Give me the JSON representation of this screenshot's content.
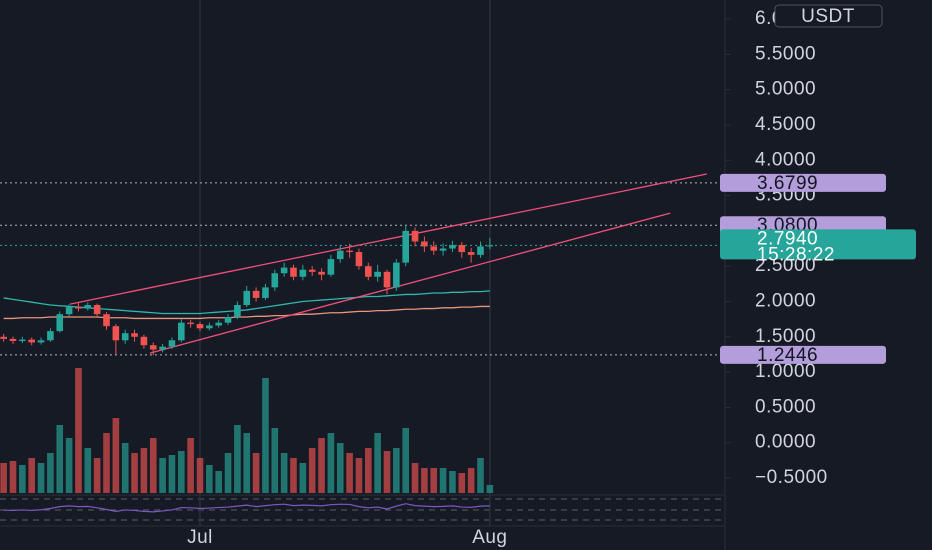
{
  "chart_data": {
    "type": "candlestick",
    "categories": [
      null,
      null,
      null,
      null,
      null,
      null,
      null,
      null,
      null,
      null,
      null,
      null,
      null,
      null,
      null,
      null,
      null,
      null,
      null,
      null,
      null,
      "Jul",
      null,
      null,
      null,
      null,
      null,
      null,
      null,
      null,
      null,
      null,
      null,
      null,
      null,
      null,
      null,
      null,
      null,
      null,
      null,
      null,
      null,
      null,
      null,
      null,
      null,
      null,
      null,
      null,
      null,
      null,
      "Aug"
    ],
    "open": [
      1.5,
      1.47,
      1.44,
      1.46,
      1.42,
      1.45,
      1.58,
      1.82,
      1.92,
      1.9,
      1.95,
      1.82,
      1.65,
      1.45,
      1.55,
      1.5,
      1.38,
      1.32,
      1.36,
      1.45,
      1.7,
      1.68,
      1.62,
      1.66,
      1.7,
      1.78,
      1.95,
      2.15,
      2.05,
      2.2,
      2.4,
      2.48,
      2.35,
      2.45,
      2.42,
      2.38,
      2.6,
      2.72,
      2.7,
      2.5,
      2.35,
      2.42,
      2.2,
      2.55,
      3.0,
      2.85,
      2.78,
      2.72,
      2.75,
      2.8,
      2.7,
      2.66,
      2.78
    ],
    "high": [
      1.54,
      1.5,
      1.5,
      1.49,
      1.49,
      1.62,
      1.86,
      1.96,
      1.98,
      1.99,
      1.97,
      1.85,
      1.68,
      1.6,
      1.6,
      1.53,
      1.42,
      1.4,
      1.49,
      1.75,
      1.74,
      1.71,
      1.7,
      1.74,
      1.82,
      2.0,
      2.22,
      2.2,
      2.25,
      2.45,
      2.55,
      2.52,
      2.52,
      2.5,
      2.47,
      2.66,
      2.8,
      2.82,
      2.75,
      2.55,
      2.52,
      2.45,
      2.6,
      3.08,
      3.05,
      2.92,
      2.85,
      2.82,
      2.86,
      2.84,
      2.76,
      2.85,
      2.9
    ],
    "low": [
      1.43,
      1.4,
      1.41,
      1.38,
      1.39,
      1.43,
      1.56,
      1.79,
      1.86,
      1.87,
      1.78,
      1.6,
      1.25,
      1.4,
      1.43,
      1.33,
      1.24,
      1.28,
      1.33,
      1.42,
      1.63,
      1.58,
      1.59,
      1.63,
      1.67,
      1.75,
      1.92,
      2.0,
      2.02,
      2.15,
      2.35,
      2.3,
      2.3,
      2.36,
      2.3,
      2.35,
      2.55,
      2.62,
      2.45,
      2.3,
      2.28,
      2.1,
      2.15,
      2.5,
      2.78,
      2.7,
      2.66,
      2.65,
      2.7,
      2.62,
      2.55,
      2.62,
      2.74
    ],
    "close": [
      1.47,
      1.44,
      1.46,
      1.42,
      1.45,
      1.58,
      1.82,
      1.92,
      1.9,
      1.95,
      1.82,
      1.65,
      1.45,
      1.55,
      1.5,
      1.38,
      1.32,
      1.36,
      1.45,
      1.7,
      1.68,
      1.62,
      1.66,
      1.7,
      1.78,
      1.95,
      2.15,
      2.05,
      2.2,
      2.4,
      2.48,
      2.35,
      2.45,
      2.42,
      2.38,
      2.6,
      2.72,
      2.7,
      2.5,
      2.35,
      2.42,
      2.2,
      2.55,
      3.0,
      2.85,
      2.78,
      2.72,
      2.75,
      2.8,
      2.7,
      2.66,
      2.78,
      2.794
    ],
    "volume": [
      30,
      32,
      28,
      35,
      30,
      40,
      68,
      55,
      125,
      45,
      35,
      60,
      75,
      50,
      40,
      45,
      55,
      35,
      38,
      42,
      55,
      35,
      28,
      22,
      40,
      68,
      60,
      40,
      115,
      65,
      40,
      35,
      30,
      45,
      55,
      60,
      50,
      40,
      35,
      45,
      60,
      42,
      45,
      65,
      30,
      25,
      25,
      25,
      22,
      20,
      25,
      35,
      8
    ],
    "up_color": "#26a69a",
    "down_color": "#ef5350",
    "moving_averages": [
      {
        "color": "#2fb7b0",
        "values": [
          2.05,
          2.03,
          2.01,
          1.99,
          1.97,
          1.95,
          1.94,
          1.93,
          1.92,
          1.91,
          1.9,
          1.89,
          1.88,
          1.87,
          1.86,
          1.85,
          1.84,
          1.83,
          1.83,
          1.83,
          1.83,
          1.83,
          1.84,
          1.85,
          1.86,
          1.87,
          1.88,
          1.9,
          1.92,
          1.94,
          1.96,
          1.98,
          2.0,
          2.01,
          2.02,
          2.03,
          2.04,
          2.05,
          2.06,
          2.07,
          2.07,
          2.08,
          2.09,
          2.1,
          2.1,
          2.11,
          2.12,
          2.12,
          2.13,
          2.13,
          2.14,
          2.14,
          2.15
        ]
      },
      {
        "color": "#e8967f",
        "values": [
          1.76,
          1.76,
          1.77,
          1.77,
          1.77,
          1.78,
          1.78,
          1.78,
          1.78,
          1.78,
          1.78,
          1.77,
          1.77,
          1.77,
          1.76,
          1.76,
          1.76,
          1.76,
          1.76,
          1.76,
          1.76,
          1.76,
          1.77,
          1.77,
          1.77,
          1.78,
          1.78,
          1.79,
          1.79,
          1.8,
          1.8,
          1.81,
          1.82,
          1.82,
          1.83,
          1.84,
          1.84,
          1.85,
          1.86,
          1.86,
          1.87,
          1.87,
          1.88,
          1.89,
          1.89,
          1.9,
          1.9,
          1.91,
          1.91,
          1.92,
          1.92,
          1.93,
          1.93
        ]
      }
    ],
    "trendlines": [
      {
        "color": "#f2507a",
        "x": [
          7.1,
          75.2
        ],
        "y": [
          1.963,
          3.805
        ]
      },
      {
        "color": "#f2507a",
        "x": [
          15.65,
          71.3
        ],
        "y": [
          1.269,
          3.252
        ]
      }
    ],
    "oscillator": {
      "color": "#7e57c2",
      "values": [
        45,
        44,
        46,
        44,
        47,
        52,
        60,
        63,
        60,
        61,
        55,
        48,
        40,
        46,
        44,
        40,
        38,
        42,
        46,
        56,
        55,
        52,
        54,
        56,
        58,
        62,
        66,
        60,
        64,
        68,
        70,
        64,
        66,
        65,
        63,
        68,
        70,
        69,
        60,
        55,
        58,
        50,
        62,
        72,
        64,
        62,
        60,
        61,
        63,
        58,
        57,
        62,
        63
      ]
    },
    "currency": "USDT",
    "ylim": [
      -0.85,
      6.27
    ],
    "yticks": [
      {
        "value": 6,
        "label": "6.0000"
      },
      {
        "value": 5.5,
        "label": "5.5000"
      },
      {
        "value": 5,
        "label": "5.0000"
      },
      {
        "value": 4.5,
        "label": "4.5000"
      },
      {
        "value": 4,
        "label": "4.0000"
      },
      {
        "value": 3.5,
        "label": "3.5000"
      },
      {
        "value": 3,
        "label": "3.0000"
      },
      {
        "value": 2.5,
        "label": "2.5000"
      },
      {
        "value": 2,
        "label": "2.0000"
      },
      {
        "value": 1.5,
        "label": "1.5000"
      },
      {
        "value": 1,
        "label": "1.0000"
      },
      {
        "value": 0.5,
        "label": "0.5000"
      },
      {
        "value": 0,
        "label": "0.0000"
      },
      {
        "value": -0.5,
        "label": "−0.5000"
      }
    ],
    "price_lines": [
      {
        "value": 3.6799,
        "color": "#b39ddb",
        "line_color": "#b2b5be"
      },
      {
        "value": 3.08,
        "label": "3.0800",
        "color": "#b39ddb",
        "line_color": "#b2b5be"
      },
      {
        "value": 1.2446,
        "color": "#b39ddb",
        "line_color": "#b2b5be"
      },
      {
        "value": 2.794,
        "label": "2.7940",
        "countdown": "15:28:22",
        "color": "#26a69a",
        "line_color": "#26a69a"
      }
    ]
  }
}
